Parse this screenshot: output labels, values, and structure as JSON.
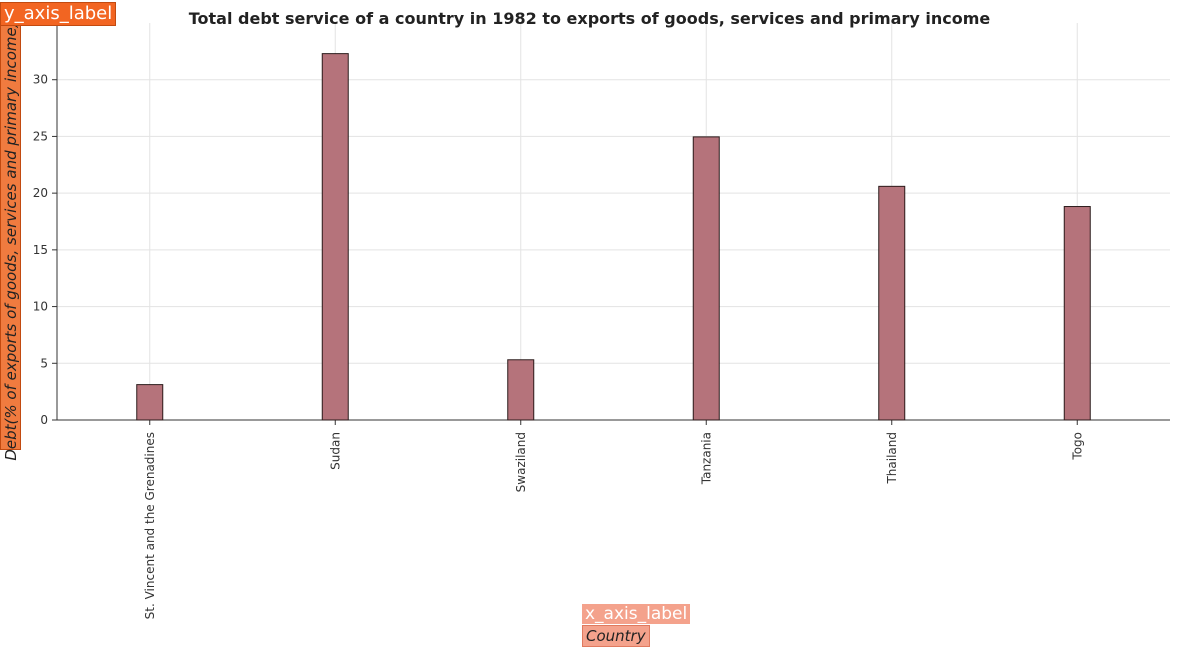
{
  "header": {
    "title": "Total debt service of a country in 1982 to exports of goods, services and primary income"
  },
  "labels": {
    "y_tag": "y_axis_label",
    "y_axis": "Debt(% of exports of goods, services and primary income)",
    "x_tag": "x_axis_label",
    "x_axis": "Country"
  },
  "colors": {
    "bar_fill": "#b5737b",
    "bar_stroke": "#2b1b1b",
    "y_tag_bg": "#f26522",
    "x_tag_bg": "#f4a28c"
  },
  "chart_data": {
    "type": "bar",
    "title": "Total debt service of a country in 1982 to exports of goods, services and primary income",
    "xlabel": "Country",
    "ylabel": "Debt(% of exports of goods, services and primary income)",
    "categories": [
      "St. Vincent and the Grenadines",
      "Sudan",
      "Swaziland",
      "Tanzania",
      "Thailand",
      "Togo"
    ],
    "values": [
      3.12,
      32.3,
      5.31,
      24.96,
      20.6,
      18.82
    ],
    "ylim": [
      0,
      35
    ],
    "yticks": [
      0,
      5,
      10,
      15,
      20,
      25,
      30
    ],
    "grid": true
  }
}
